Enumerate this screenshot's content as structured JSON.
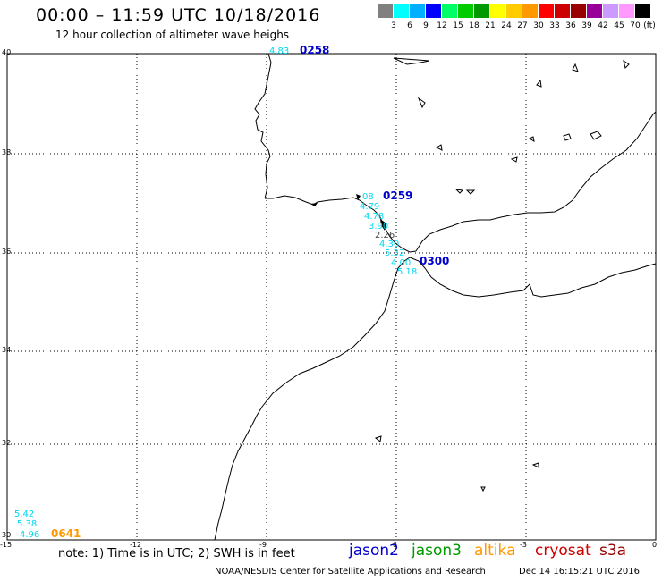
{
  "header": {
    "title": "00:00 – 11:59 UTC 10/18/2016",
    "subtitle": "12 hour collection of altimeter wave heighs"
  },
  "legend": {
    "unit": "(ft)",
    "colors": [
      "#808080",
      "#00ffff",
      "#00b0ff",
      "#0000ff",
      "#00ff66",
      "#00cc00",
      "#009900",
      "#ffff00",
      "#ffcc00",
      "#ff9900",
      "#ff0000",
      "#cc0000",
      "#990000",
      "#990099",
      "#cc99ff",
      "#ff99ff",
      "#000000"
    ],
    "labels": [
      "3",
      "6",
      "9",
      "12",
      "15",
      "18",
      "21",
      "24",
      "27",
      "30",
      "33",
      "36",
      "39",
      "42",
      "45",
      "70"
    ]
  },
  "axes": {
    "lat_labels": [
      "40",
      "38",
      "36",
      "34",
      "32",
      "30"
    ],
    "lon_labels": [
      "-15",
      "-12",
      "-9",
      "-6",
      "-3",
      "0"
    ]
  },
  "passes": [
    {
      "label": "0258",
      "color": "#0000cc",
      "values": [
        "4.83"
      ]
    },
    {
      "label": "0259",
      "color": "#0000cc",
      "values": [
        "08",
        "4.79",
        "4.78",
        "3.90",
        "2.26",
        "4.30",
        "5.32",
        "4.00",
        "5.18"
      ]
    },
    {
      "label": "0300",
      "color": "#0000cc",
      "values": []
    },
    {
      "label": "0641",
      "color": "#ff9900",
      "values": [
        "5.42",
        "5.38",
        "4.96"
      ]
    }
  ],
  "footer": {
    "note": "note:  1) Time is in UTC;  2) SWH is in feet",
    "satellites": [
      {
        "name": "jason2",
        "color": "#0000cc"
      },
      {
        "name": "jason3",
        "color": "#009900"
      },
      {
        "name": "altika",
        "color": "#ff9900"
      },
      {
        "name": "cryosat",
        "color": "#cc0000"
      },
      {
        "name": "s3a",
        "color": "#990000"
      }
    ],
    "credit": "NOAA/NESDIS Center for Satellite Applications and Research",
    "timestamp": "Dec 14 16:15:21 UTC 2016"
  }
}
